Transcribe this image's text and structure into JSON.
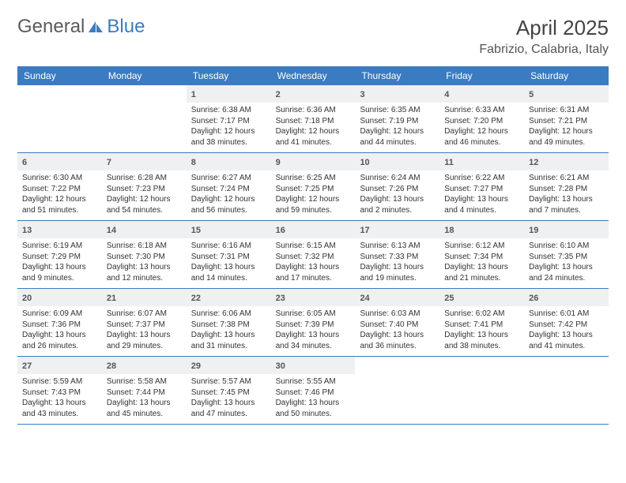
{
  "brand": {
    "word1": "General",
    "word2": "Blue"
  },
  "title": "April 2025",
  "location": "Fabrizio, Calabria, Italy",
  "colors": {
    "accent": "#3b7bbf",
    "header_bg": "#3b7bbf",
    "daynum_bg": "#eef0f2",
    "rule": "#3b7bbf",
    "text": "#333333",
    "logo_gray": "#5b5b5b",
    "background": "#ffffff"
  },
  "typography": {
    "month_title_pt": 26,
    "location_pt": 16,
    "day_header_pt": 12,
    "daynum_pt": 11,
    "cell_text_pt": 10,
    "font_family": "Arial"
  },
  "layout": {
    "columns": 7,
    "rows": 5,
    "col_count": 7
  },
  "day_names": [
    "Sunday",
    "Monday",
    "Tuesday",
    "Wednesday",
    "Thursday",
    "Friday",
    "Saturday"
  ],
  "weeks": [
    [
      {
        "empty": true
      },
      {
        "empty": true
      },
      {
        "n": "1",
        "sr": "Sunrise: 6:38 AM",
        "ss": "Sunset: 7:17 PM",
        "dl": "Daylight: 12 hours and 38 minutes."
      },
      {
        "n": "2",
        "sr": "Sunrise: 6:36 AM",
        "ss": "Sunset: 7:18 PM",
        "dl": "Daylight: 12 hours and 41 minutes."
      },
      {
        "n": "3",
        "sr": "Sunrise: 6:35 AM",
        "ss": "Sunset: 7:19 PM",
        "dl": "Daylight: 12 hours and 44 minutes."
      },
      {
        "n": "4",
        "sr": "Sunrise: 6:33 AM",
        "ss": "Sunset: 7:20 PM",
        "dl": "Daylight: 12 hours and 46 minutes."
      },
      {
        "n": "5",
        "sr": "Sunrise: 6:31 AM",
        "ss": "Sunset: 7:21 PM",
        "dl": "Daylight: 12 hours and 49 minutes."
      }
    ],
    [
      {
        "n": "6",
        "sr": "Sunrise: 6:30 AM",
        "ss": "Sunset: 7:22 PM",
        "dl": "Daylight: 12 hours and 51 minutes."
      },
      {
        "n": "7",
        "sr": "Sunrise: 6:28 AM",
        "ss": "Sunset: 7:23 PM",
        "dl": "Daylight: 12 hours and 54 minutes."
      },
      {
        "n": "8",
        "sr": "Sunrise: 6:27 AM",
        "ss": "Sunset: 7:24 PM",
        "dl": "Daylight: 12 hours and 56 minutes."
      },
      {
        "n": "9",
        "sr": "Sunrise: 6:25 AM",
        "ss": "Sunset: 7:25 PM",
        "dl": "Daylight: 12 hours and 59 minutes."
      },
      {
        "n": "10",
        "sr": "Sunrise: 6:24 AM",
        "ss": "Sunset: 7:26 PM",
        "dl": "Daylight: 13 hours and 2 minutes."
      },
      {
        "n": "11",
        "sr": "Sunrise: 6:22 AM",
        "ss": "Sunset: 7:27 PM",
        "dl": "Daylight: 13 hours and 4 minutes."
      },
      {
        "n": "12",
        "sr": "Sunrise: 6:21 AM",
        "ss": "Sunset: 7:28 PM",
        "dl": "Daylight: 13 hours and 7 minutes."
      }
    ],
    [
      {
        "n": "13",
        "sr": "Sunrise: 6:19 AM",
        "ss": "Sunset: 7:29 PM",
        "dl": "Daylight: 13 hours and 9 minutes."
      },
      {
        "n": "14",
        "sr": "Sunrise: 6:18 AM",
        "ss": "Sunset: 7:30 PM",
        "dl": "Daylight: 13 hours and 12 minutes."
      },
      {
        "n": "15",
        "sr": "Sunrise: 6:16 AM",
        "ss": "Sunset: 7:31 PM",
        "dl": "Daylight: 13 hours and 14 minutes."
      },
      {
        "n": "16",
        "sr": "Sunrise: 6:15 AM",
        "ss": "Sunset: 7:32 PM",
        "dl": "Daylight: 13 hours and 17 minutes."
      },
      {
        "n": "17",
        "sr": "Sunrise: 6:13 AM",
        "ss": "Sunset: 7:33 PM",
        "dl": "Daylight: 13 hours and 19 minutes."
      },
      {
        "n": "18",
        "sr": "Sunrise: 6:12 AM",
        "ss": "Sunset: 7:34 PM",
        "dl": "Daylight: 13 hours and 21 minutes."
      },
      {
        "n": "19",
        "sr": "Sunrise: 6:10 AM",
        "ss": "Sunset: 7:35 PM",
        "dl": "Daylight: 13 hours and 24 minutes."
      }
    ],
    [
      {
        "n": "20",
        "sr": "Sunrise: 6:09 AM",
        "ss": "Sunset: 7:36 PM",
        "dl": "Daylight: 13 hours and 26 minutes."
      },
      {
        "n": "21",
        "sr": "Sunrise: 6:07 AM",
        "ss": "Sunset: 7:37 PM",
        "dl": "Daylight: 13 hours and 29 minutes."
      },
      {
        "n": "22",
        "sr": "Sunrise: 6:06 AM",
        "ss": "Sunset: 7:38 PM",
        "dl": "Daylight: 13 hours and 31 minutes."
      },
      {
        "n": "23",
        "sr": "Sunrise: 6:05 AM",
        "ss": "Sunset: 7:39 PM",
        "dl": "Daylight: 13 hours and 34 minutes."
      },
      {
        "n": "24",
        "sr": "Sunrise: 6:03 AM",
        "ss": "Sunset: 7:40 PM",
        "dl": "Daylight: 13 hours and 36 minutes."
      },
      {
        "n": "25",
        "sr": "Sunrise: 6:02 AM",
        "ss": "Sunset: 7:41 PM",
        "dl": "Daylight: 13 hours and 38 minutes."
      },
      {
        "n": "26",
        "sr": "Sunrise: 6:01 AM",
        "ss": "Sunset: 7:42 PM",
        "dl": "Daylight: 13 hours and 41 minutes."
      }
    ],
    [
      {
        "n": "27",
        "sr": "Sunrise: 5:59 AM",
        "ss": "Sunset: 7:43 PM",
        "dl": "Daylight: 13 hours and 43 minutes."
      },
      {
        "n": "28",
        "sr": "Sunrise: 5:58 AM",
        "ss": "Sunset: 7:44 PM",
        "dl": "Daylight: 13 hours and 45 minutes."
      },
      {
        "n": "29",
        "sr": "Sunrise: 5:57 AM",
        "ss": "Sunset: 7:45 PM",
        "dl": "Daylight: 13 hours and 47 minutes."
      },
      {
        "n": "30",
        "sr": "Sunrise: 5:55 AM",
        "ss": "Sunset: 7:46 PM",
        "dl": "Daylight: 13 hours and 50 minutes."
      },
      {
        "empty": true
      },
      {
        "empty": true
      },
      {
        "empty": true
      }
    ]
  ]
}
